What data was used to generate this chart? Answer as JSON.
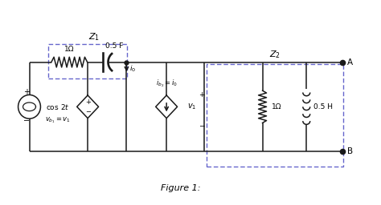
{
  "fig_width": 4.74,
  "fig_height": 2.56,
  "dpi": 100,
  "bg_color": "#ffffff",
  "line_color": "#1a1a1a",
  "dash_color": "#6666cc",
  "title": "Figure 1:",
  "Z1_label": "$Z_1$",
  "Z2_label": "$Z_2$",
  "resistor1_label": "1Ω",
  "capacitor_label": "0.5 F",
  "source_label": "cos 2$t$",
  "vb1_label": "$v_{b_1} = v_1$",
  "ib2_label": "$i_{b_2} = i_0$",
  "i0_label": "$i_0$",
  "resistor2_label": "1Ω",
  "inductor_label": "0.5 H",
  "v1_label": "$v_1$",
  "nodeA_label": "A",
  "nodeB_label": "B"
}
